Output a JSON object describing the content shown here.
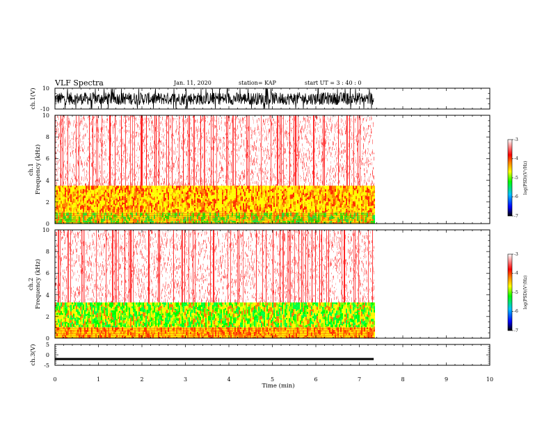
{
  "header": {
    "title": "VLF Spectra",
    "date": "Jan. 11, 2020",
    "station": "station= KAP",
    "start": "start UT = 3 : 40 : 0"
  },
  "chart_data": [
    {
      "type": "line",
      "panel": "ch1-waveform",
      "ylabel": "ch.1(V)",
      "ylim": [
        -10,
        10
      ],
      "yticks": [
        "10",
        "-10"
      ],
      "xlim": [
        0,
        10
      ],
      "data_extent_min": 7.33,
      "series": [
        {
          "description_values": "dense noise band roughly between -6 and 6 V",
          "y_min": -6,
          "y_max": 6
        }
      ]
    },
    {
      "type": "heatmap",
      "panel": "ch1-spectrogram",
      "ylabel": "ch.1",
      "ylabel2": "Frequency (kHz)",
      "ylim": [
        0,
        10
      ],
      "yticks": [
        "0",
        "2",
        "4",
        "6",
        "8",
        "10"
      ],
      "xlim": [
        0,
        10
      ],
      "data_extent_min": 7.33,
      "bands": [
        {
          "f_from": 0.0,
          "f_to": 1.0,
          "level": "green-yellow"
        },
        {
          "f_from": 1.0,
          "f_to": 3.5,
          "level": "yellow-orange"
        },
        {
          "f_from": 3.5,
          "f_to": 10.0,
          "level": "red (sparse)"
        }
      ],
      "colorbar": {
        "label": "log(PSD)(V²/Hz)",
        "ticks": [
          "-3",
          "-4",
          "-5",
          "-6",
          "-7"
        ],
        "range": [
          -7,
          -3
        ]
      }
    },
    {
      "type": "heatmap",
      "panel": "ch2-spectrogram",
      "ylabel": "ch.2",
      "ylabel2": "Frequency (kHz)",
      "ylim": [
        0,
        10
      ],
      "yticks": [
        "0",
        "2",
        "4",
        "6",
        "8",
        "10"
      ],
      "xlim": [
        0,
        10
      ],
      "data_extent_min": 7.33,
      "bands": [
        {
          "f_from": 0.0,
          "f_to": 1.0,
          "level": "yellow-orange"
        },
        {
          "f_from": 1.0,
          "f_to": 3.3,
          "level": "green-yellow"
        },
        {
          "f_from": 3.3,
          "f_to": 10.0,
          "level": "red (sparse)"
        }
      ],
      "colorbar": {
        "label": "log(PSD)(V²/Hz)",
        "ticks": [
          "-3",
          "-4",
          "-5",
          "-6",
          "-7"
        ],
        "range": [
          -7,
          -3
        ]
      }
    },
    {
      "type": "line",
      "panel": "ch3-waveform",
      "ylabel": "ch.3(V)",
      "ylim": [
        -5,
        5
      ],
      "yticks": [
        "5",
        "0",
        "-5"
      ],
      "xlim": [
        0,
        10
      ],
      "data_extent_min": 7.33,
      "series": [
        {
          "description_values": "near-constant thick trace around -2 V",
          "y_min": -2.5,
          "y_max": -1.5
        }
      ]
    }
  ],
  "xaxis": {
    "label": "Time (min)",
    "ticks": [
      "0",
      "1",
      "2",
      "3",
      "4",
      "5",
      "6",
      "7",
      "8",
      "9",
      "10"
    ]
  },
  "colors": {
    "trace": "#000000",
    "colormap": [
      "#000000",
      "#0000ff",
      "#00c0ff",
      "#00ff00",
      "#ffff00",
      "#ff8000",
      "#ff0000",
      "#ffffff"
    ]
  }
}
